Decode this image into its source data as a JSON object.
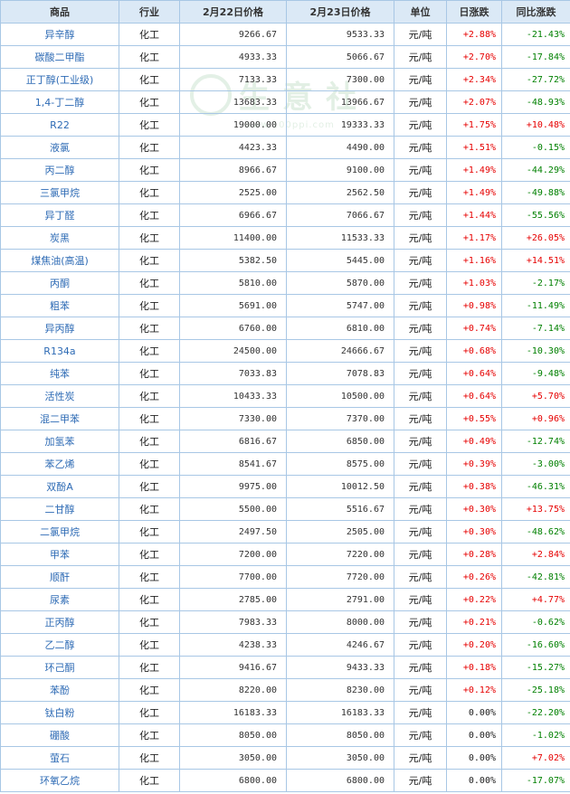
{
  "table": {
    "headers": [
      "商品",
      "行业",
      "2月22日价格",
      "2月23日价格",
      "单位",
      "日涨跌",
      "同比涨跌"
    ],
    "rows": [
      {
        "name": "异辛醇",
        "industry": "化工",
        "price1": "9266.67",
        "price2": "9533.33",
        "unit": "元/吨",
        "daily": "+2.88%",
        "yoy": "-21.43%"
      },
      {
        "name": "碳酸二甲酯",
        "industry": "化工",
        "price1": "4933.33",
        "price2": "5066.67",
        "unit": "元/吨",
        "daily": "+2.70%",
        "yoy": "-17.84%"
      },
      {
        "name": "正丁醇(工业级)",
        "industry": "化工",
        "price1": "7133.33",
        "price2": "7300.00",
        "unit": "元/吨",
        "daily": "+2.34%",
        "yoy": "-27.72%"
      },
      {
        "name": "1,4-丁二醇",
        "industry": "化工",
        "price1": "13683.33",
        "price2": "13966.67",
        "unit": "元/吨",
        "daily": "+2.07%",
        "yoy": "-48.93%"
      },
      {
        "name": "R22",
        "industry": "化工",
        "price1": "19000.00",
        "price2": "19333.33",
        "unit": "元/吨",
        "daily": "+1.75%",
        "yoy": "+10.48%"
      },
      {
        "name": "液氯",
        "industry": "化工",
        "price1": "4423.33",
        "price2": "4490.00",
        "unit": "元/吨",
        "daily": "+1.51%",
        "yoy": "-0.15%"
      },
      {
        "name": "丙二醇",
        "industry": "化工",
        "price1": "8966.67",
        "price2": "9100.00",
        "unit": "元/吨",
        "daily": "+1.49%",
        "yoy": "-44.29%"
      },
      {
        "name": "三氯甲烷",
        "industry": "化工",
        "price1": "2525.00",
        "price2": "2562.50",
        "unit": "元/吨",
        "daily": "+1.49%",
        "yoy": "-49.88%"
      },
      {
        "name": "异丁醛",
        "industry": "化工",
        "price1": "6966.67",
        "price2": "7066.67",
        "unit": "元/吨",
        "daily": "+1.44%",
        "yoy": "-55.56%"
      },
      {
        "name": "炭黑",
        "industry": "化工",
        "price1": "11400.00",
        "price2": "11533.33",
        "unit": "元/吨",
        "daily": "+1.17%",
        "yoy": "+26.05%"
      },
      {
        "name": "煤焦油(高温)",
        "industry": "化工",
        "price1": "5382.50",
        "price2": "5445.00",
        "unit": "元/吨",
        "daily": "+1.16%",
        "yoy": "+14.51%"
      },
      {
        "name": "丙酮",
        "industry": "化工",
        "price1": "5810.00",
        "price2": "5870.00",
        "unit": "元/吨",
        "daily": "+1.03%",
        "yoy": "-2.17%"
      },
      {
        "name": "粗苯",
        "industry": "化工",
        "price1": "5691.00",
        "price2": "5747.00",
        "unit": "元/吨",
        "daily": "+0.98%",
        "yoy": "-11.49%"
      },
      {
        "name": "异丙醇",
        "industry": "化工",
        "price1": "6760.00",
        "price2": "6810.00",
        "unit": "元/吨",
        "daily": "+0.74%",
        "yoy": "-7.14%"
      },
      {
        "name": "R134a",
        "industry": "化工",
        "price1": "24500.00",
        "price2": "24666.67",
        "unit": "元/吨",
        "daily": "+0.68%",
        "yoy": "-10.30%"
      },
      {
        "name": "纯苯",
        "industry": "化工",
        "price1": "7033.83",
        "price2": "7078.83",
        "unit": "元/吨",
        "daily": "+0.64%",
        "yoy": "-9.48%"
      },
      {
        "name": "活性炭",
        "industry": "化工",
        "price1": "10433.33",
        "price2": "10500.00",
        "unit": "元/吨",
        "daily": "+0.64%",
        "yoy": "+5.70%"
      },
      {
        "name": "混二甲苯",
        "industry": "化工",
        "price1": "7330.00",
        "price2": "7370.00",
        "unit": "元/吨",
        "daily": "+0.55%",
        "yoy": "+0.96%"
      },
      {
        "name": "加氢苯",
        "industry": "化工",
        "price1": "6816.67",
        "price2": "6850.00",
        "unit": "元/吨",
        "daily": "+0.49%",
        "yoy": "-12.74%"
      },
      {
        "name": "苯乙烯",
        "industry": "化工",
        "price1": "8541.67",
        "price2": "8575.00",
        "unit": "元/吨",
        "daily": "+0.39%",
        "yoy": "-3.00%"
      },
      {
        "name": "双酚A",
        "industry": "化工",
        "price1": "9975.00",
        "price2": "10012.50",
        "unit": "元/吨",
        "daily": "+0.38%",
        "yoy": "-46.31%"
      },
      {
        "name": "二甘醇",
        "industry": "化工",
        "price1": "5500.00",
        "price2": "5516.67",
        "unit": "元/吨",
        "daily": "+0.30%",
        "yoy": "+13.75%"
      },
      {
        "name": "二氯甲烷",
        "industry": "化工",
        "price1": "2497.50",
        "price2": "2505.00",
        "unit": "元/吨",
        "daily": "+0.30%",
        "yoy": "-48.62%"
      },
      {
        "name": "甲苯",
        "industry": "化工",
        "price1": "7200.00",
        "price2": "7220.00",
        "unit": "元/吨",
        "daily": "+0.28%",
        "yoy": "+2.84%"
      },
      {
        "name": "顺酐",
        "industry": "化工",
        "price1": "7700.00",
        "price2": "7720.00",
        "unit": "元/吨",
        "daily": "+0.26%",
        "yoy": "-42.81%"
      },
      {
        "name": "尿素",
        "industry": "化工",
        "price1": "2785.00",
        "price2": "2791.00",
        "unit": "元/吨",
        "daily": "+0.22%",
        "yoy": "+4.77%"
      },
      {
        "name": "正丙醇",
        "industry": "化工",
        "price1": "7983.33",
        "price2": "8000.00",
        "unit": "元/吨",
        "daily": "+0.21%",
        "yoy": "-0.62%"
      },
      {
        "name": "乙二醇",
        "industry": "化工",
        "price1": "4238.33",
        "price2": "4246.67",
        "unit": "元/吨",
        "daily": "+0.20%",
        "yoy": "-16.60%"
      },
      {
        "name": "环己酮",
        "industry": "化工",
        "price1": "9416.67",
        "price2": "9433.33",
        "unit": "元/吨",
        "daily": "+0.18%",
        "yoy": "-15.27%"
      },
      {
        "name": "苯酚",
        "industry": "化工",
        "price1": "8220.00",
        "price2": "8230.00",
        "unit": "元/吨",
        "daily": "+0.12%",
        "yoy": "-25.18%"
      },
      {
        "name": "钛白粉",
        "industry": "化工",
        "price1": "16183.33",
        "price2": "16183.33",
        "unit": "元/吨",
        "daily": "0.00%",
        "yoy": "-22.20%"
      },
      {
        "name": "硼酸",
        "industry": "化工",
        "price1": "8050.00",
        "price2": "8050.00",
        "unit": "元/吨",
        "daily": "0.00%",
        "yoy": "-1.02%"
      },
      {
        "name": "萤石",
        "industry": "化工",
        "price1": "3050.00",
        "price2": "3050.00",
        "unit": "元/吨",
        "daily": "0.00%",
        "yoy": "+7.02%"
      },
      {
        "name": "环氧乙烷",
        "industry": "化工",
        "price1": "6800.00",
        "price2": "6800.00",
        "unit": "元/吨",
        "daily": "0.00%",
        "yoy": "-17.07%"
      }
    ]
  },
  "watermark": {
    "text": "生意社",
    "url": "www.100ppi.com"
  },
  "colors": {
    "up": "#e60000",
    "down": "#008000",
    "header_bg": "#dbe9f6",
    "border": "#a8c7e5",
    "name_link": "#2e6bb5"
  }
}
